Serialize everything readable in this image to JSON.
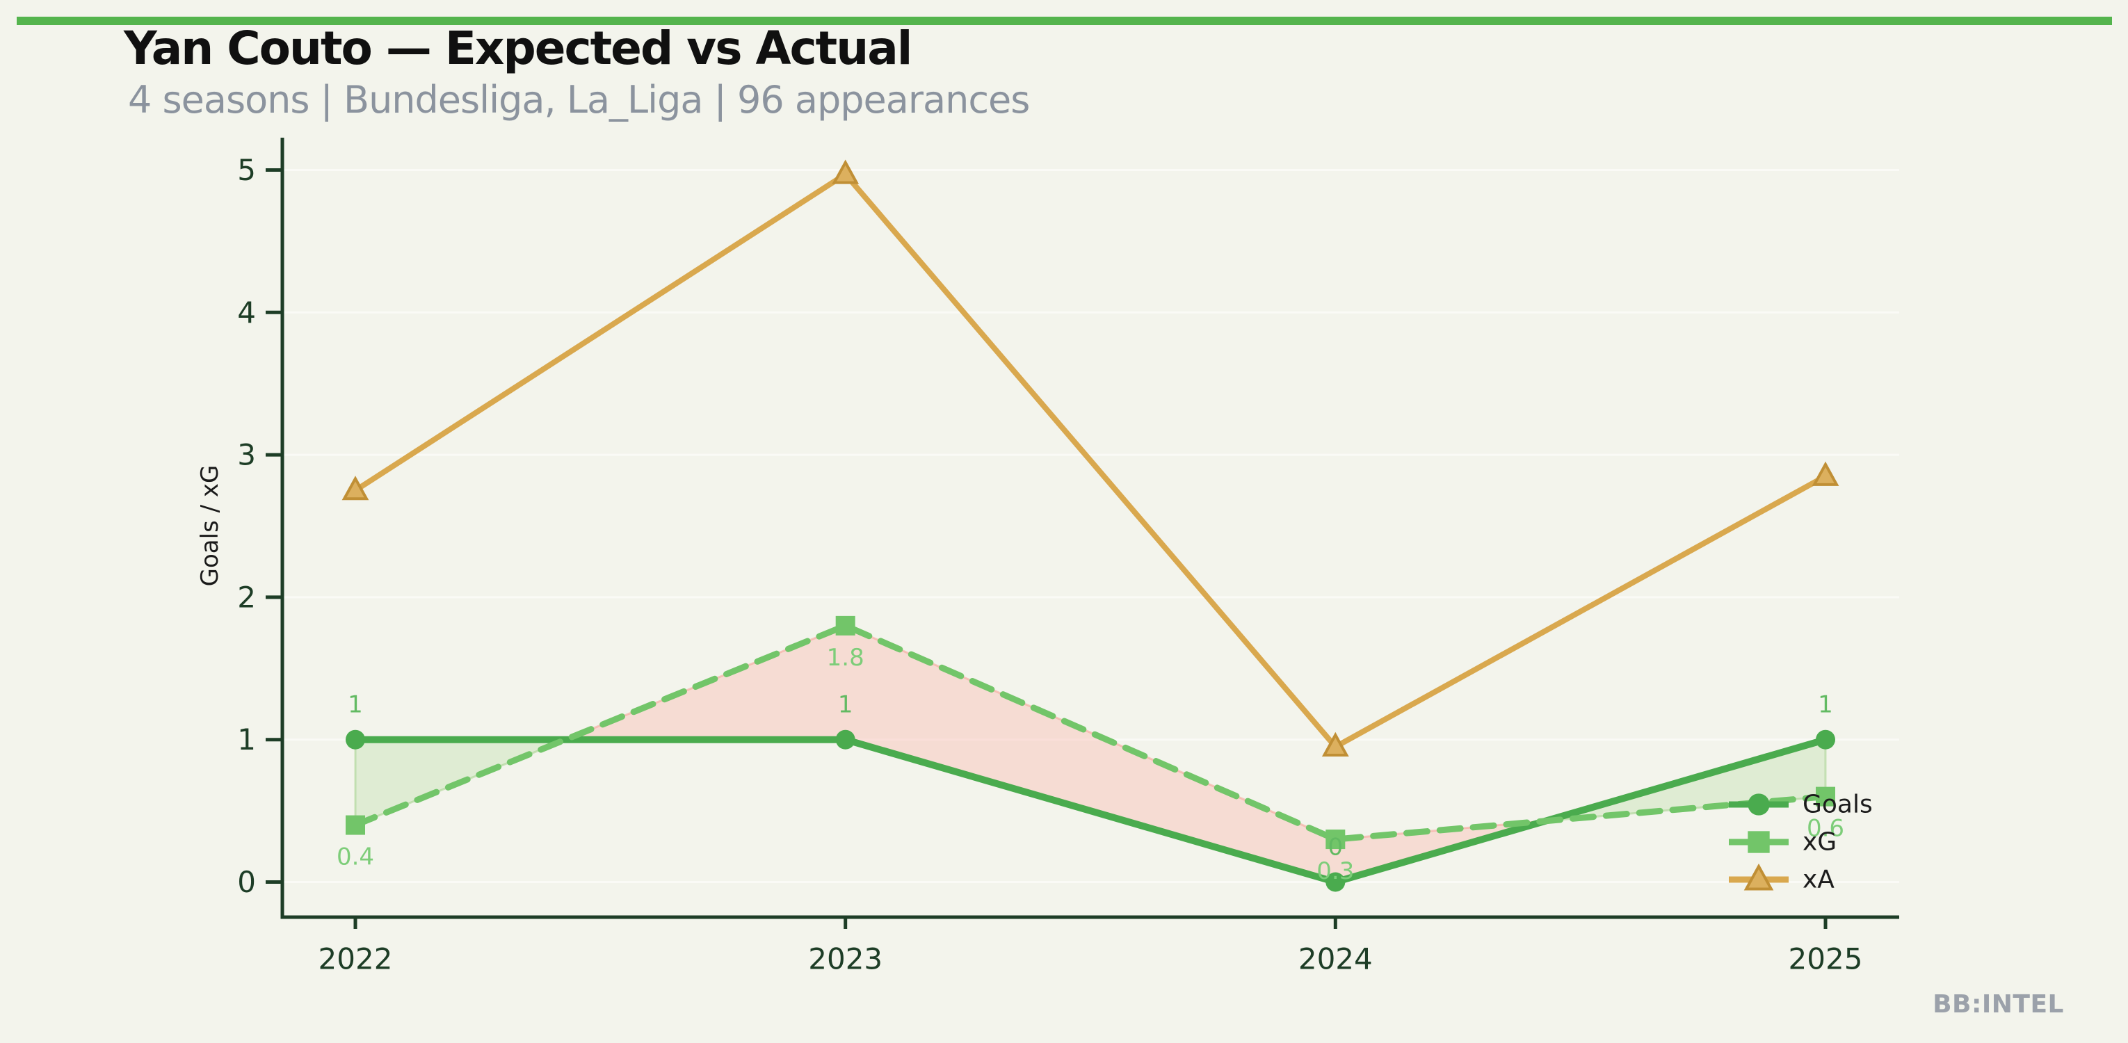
{
  "header": {
    "title": "Yan Couto — Expected vs Actual",
    "subtitle": "4 seasons | Bundesliga, La_Liga | 96 appearances"
  },
  "branding": {
    "watermark": "BB:INTEL"
  },
  "chart_data": {
    "type": "line",
    "title": "Yan Couto — Expected vs Actual",
    "categories": [
      "2022",
      "2023",
      "2024",
      "2025"
    ],
    "xlabel": "",
    "ylabel": "Goals / xG",
    "ylim": [
      0,
      5
    ],
    "yticks": [
      0,
      1,
      2,
      3,
      4,
      5
    ],
    "grid": "horizontal-faint",
    "legend_position": "inside-right",
    "legend": [
      "Goals",
      "xG",
      "xA"
    ],
    "series": [
      {
        "name": "Goals",
        "style": "solid",
        "marker": "circle",
        "color": "#4aab4e",
        "values": [
          1,
          1,
          0,
          1
        ],
        "point_labels": [
          "1",
          "1",
          "0",
          "1"
        ],
        "label_color": "#62ba62"
      },
      {
        "name": "xG",
        "style": "dashed",
        "marker": "square",
        "color": "#72c569",
        "values": [
          0.4,
          1.8,
          0.3,
          0.6
        ],
        "point_labels": [
          "0.4",
          "1.8",
          "0.3",
          "0.6"
        ],
        "label_color": "#7dcd79"
      },
      {
        "name": "xA",
        "style": "solid",
        "marker": "triangle",
        "color": "#d9a84e",
        "marker_fill": "#dcb05e",
        "marker_edge": "#c08f35",
        "values": [
          2.75,
          4.97,
          0.95,
          2.85
        ]
      }
    ],
    "fill_between": {
      "series_above": "Goals",
      "series_below": "xG",
      "above_color": "rgba(150,210,120,0.21)",
      "above_edge": "rgba(150,205,125,0.45)",
      "below_color": "rgba(250,190,182,0.45)",
      "below_edge": "rgba(246,160,150,0.55)"
    }
  },
  "theme": {
    "background": "#f3f4ec",
    "top_bar": "#54b44d",
    "title_color": "#101010",
    "subtitle_color": "#8b939e",
    "axis": "#1d3d26",
    "tick_label": "#1d3d26",
    "axis_title_color": "#1a1a1a",
    "legend_text": "#1c1c1c",
    "watermark_color": "#9ba1aa",
    "grid": "rgba(255,255,255,0.55)"
  }
}
